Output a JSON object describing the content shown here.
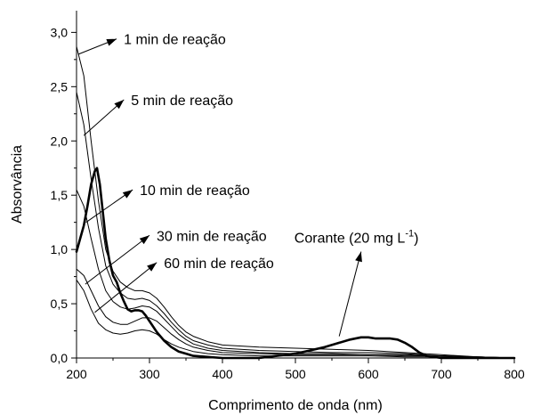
{
  "chart_data": {
    "type": "line",
    "xlabel": "Comprimento de onda (nm)",
    "ylabel": "Absorvância",
    "xlim": [
      200,
      800
    ],
    "ylim": [
      0,
      3.2
    ],
    "grid": false,
    "x_ticks": [
      200,
      300,
      400,
      500,
      600,
      700,
      800
    ],
    "x_tick_labels": [
      "200",
      "300",
      "400",
      "500",
      "600",
      "700",
      "800"
    ],
    "y_ticks": [
      0,
      0.5,
      1.0,
      1.5,
      2.0,
      2.5,
      3.0
    ],
    "y_tick_labels": [
      "0,0",
      "0,5",
      "1,0",
      "1,5",
      "2,0",
      "2,5",
      "3,0"
    ],
    "series": [
      {
        "x": [
          200,
          210,
          220,
          230,
          240,
          250,
          260,
          270,
          280,
          290,
          300,
          310,
          320,
          330,
          340,
          350,
          360,
          380,
          400,
          450,
          500,
          550,
          600,
          650,
          700,
          750,
          800
        ],
        "y": [
          2.87,
          2.6,
          2.0,
          1.45,
          1.0,
          0.8,
          0.7,
          0.65,
          0.62,
          0.62,
          0.6,
          0.55,
          0.47,
          0.38,
          0.3,
          0.24,
          0.2,
          0.15,
          0.12,
          0.1,
          0.09,
          0.08,
          0.07,
          0.05,
          0.03,
          0.01,
          0.0
        ]
      },
      {
        "x": [
          200,
          210,
          220,
          230,
          240,
          250,
          260,
          270,
          280,
          290,
          300,
          310,
          320,
          330,
          340,
          350,
          360,
          380,
          400,
          450,
          500,
          550,
          600,
          650,
          700,
          750,
          800
        ],
        "y": [
          2.45,
          2.15,
          1.65,
          1.2,
          0.85,
          0.68,
          0.6,
          0.55,
          0.54,
          0.55,
          0.53,
          0.48,
          0.41,
          0.33,
          0.26,
          0.2,
          0.16,
          0.12,
          0.09,
          0.07,
          0.06,
          0.05,
          0.05,
          0.04,
          0.02,
          0.01,
          0.0
        ]
      },
      {
        "x": [
          200,
          210,
          220,
          230,
          240,
          250,
          260,
          270,
          280,
          290,
          300,
          310,
          320,
          330,
          340,
          350,
          360,
          380,
          400,
          450,
          500,
          550,
          600,
          650,
          700,
          750,
          800
        ],
        "y": [
          1.55,
          1.4,
          1.1,
          0.82,
          0.62,
          0.52,
          0.47,
          0.45,
          0.46,
          0.48,
          0.47,
          0.43,
          0.36,
          0.29,
          0.22,
          0.17,
          0.13,
          0.09,
          0.07,
          0.05,
          0.04,
          0.04,
          0.03,
          0.03,
          0.02,
          0.01,
          0.0
        ]
      },
      {
        "x": [
          200,
          210,
          220,
          230,
          240,
          250,
          260,
          270,
          280,
          290,
          300,
          310,
          320,
          330,
          340,
          350,
          360,
          380,
          400,
          450,
          500,
          550,
          600,
          650,
          700,
          750,
          800
        ],
        "y": [
          0.82,
          0.76,
          0.62,
          0.48,
          0.38,
          0.33,
          0.31,
          0.31,
          0.34,
          0.37,
          0.37,
          0.34,
          0.28,
          0.22,
          0.17,
          0.13,
          0.1,
          0.07,
          0.05,
          0.04,
          0.03,
          0.03,
          0.03,
          0.02,
          0.02,
          0.01,
          0.0
        ]
      },
      {
        "x": [
          200,
          210,
          220,
          230,
          240,
          250,
          260,
          270,
          280,
          290,
          300,
          310,
          320,
          330,
          340,
          350,
          360,
          380,
          400,
          450,
          500,
          550,
          600,
          650,
          700,
          750,
          800
        ],
        "y": [
          0.72,
          0.62,
          0.45,
          0.32,
          0.26,
          0.23,
          0.22,
          0.23,
          0.25,
          0.26,
          0.25,
          0.22,
          0.17,
          0.13,
          0.1,
          0.08,
          0.06,
          0.04,
          0.03,
          0.02,
          0.02,
          0.02,
          0.02,
          0.01,
          0.01,
          0.0,
          0.0
        ]
      },
      {
        "bold": true,
        "x": [
          200,
          205,
          210,
          215,
          220,
          225,
          228,
          232,
          236,
          240,
          245,
          250,
          255,
          260,
          265,
          270,
          275,
          280,
          285,
          290,
          295,
          300,
          310,
          320,
          330,
          340,
          350,
          360,
          380,
          400,
          450,
          500,
          520,
          540,
          560,
          575,
          590,
          600,
          610,
          620,
          630,
          640,
          650,
          660,
          670,
          680,
          700,
          750,
          800
        ],
        "y": [
          0.98,
          1.1,
          1.22,
          1.4,
          1.6,
          1.72,
          1.75,
          1.6,
          1.35,
          1.1,
          0.9,
          0.76,
          0.7,
          0.6,
          0.52,
          0.45,
          0.43,
          0.44,
          0.44,
          0.43,
          0.39,
          0.34,
          0.24,
          0.16,
          0.1,
          0.06,
          0.04,
          0.02,
          0.01,
          0.0,
          0.0,
          0.04,
          0.07,
          0.1,
          0.14,
          0.17,
          0.19,
          0.19,
          0.18,
          0.18,
          0.18,
          0.17,
          0.14,
          0.1,
          0.05,
          0.02,
          0.0,
          0.0,
          0.0
        ]
      }
    ],
    "annotations": [
      {
        "label": "1 min de reação",
        "point": [
          203,
          2.8
        ],
        "arrow_tip": [
          255,
          2.94
        ]
      },
      {
        "label": "5 min de reação",
        "point": [
          210,
          2.05
        ],
        "arrow_tip": [
          265,
          2.38
        ]
      },
      {
        "label": "10 min de reação",
        "point": [
          213,
          1.25
        ],
        "arrow_tip": [
          277,
          1.55
        ]
      },
      {
        "label": "30 min de reação",
        "point": [
          212,
          0.68
        ],
        "arrow_tip": [
          300,
          1.13
        ]
      },
      {
        "label": "60 min de reação",
        "point": [
          225,
          0.42
        ],
        "arrow_tip": [
          310,
          0.88
        ]
      },
      {
        "label": "Corante  (20 mg L",
        "superscript": "-1",
        "suffix": ")",
        "point": [
          560,
          0.2
        ],
        "arrow_tip": [
          590,
          0.98
        ]
      }
    ]
  }
}
